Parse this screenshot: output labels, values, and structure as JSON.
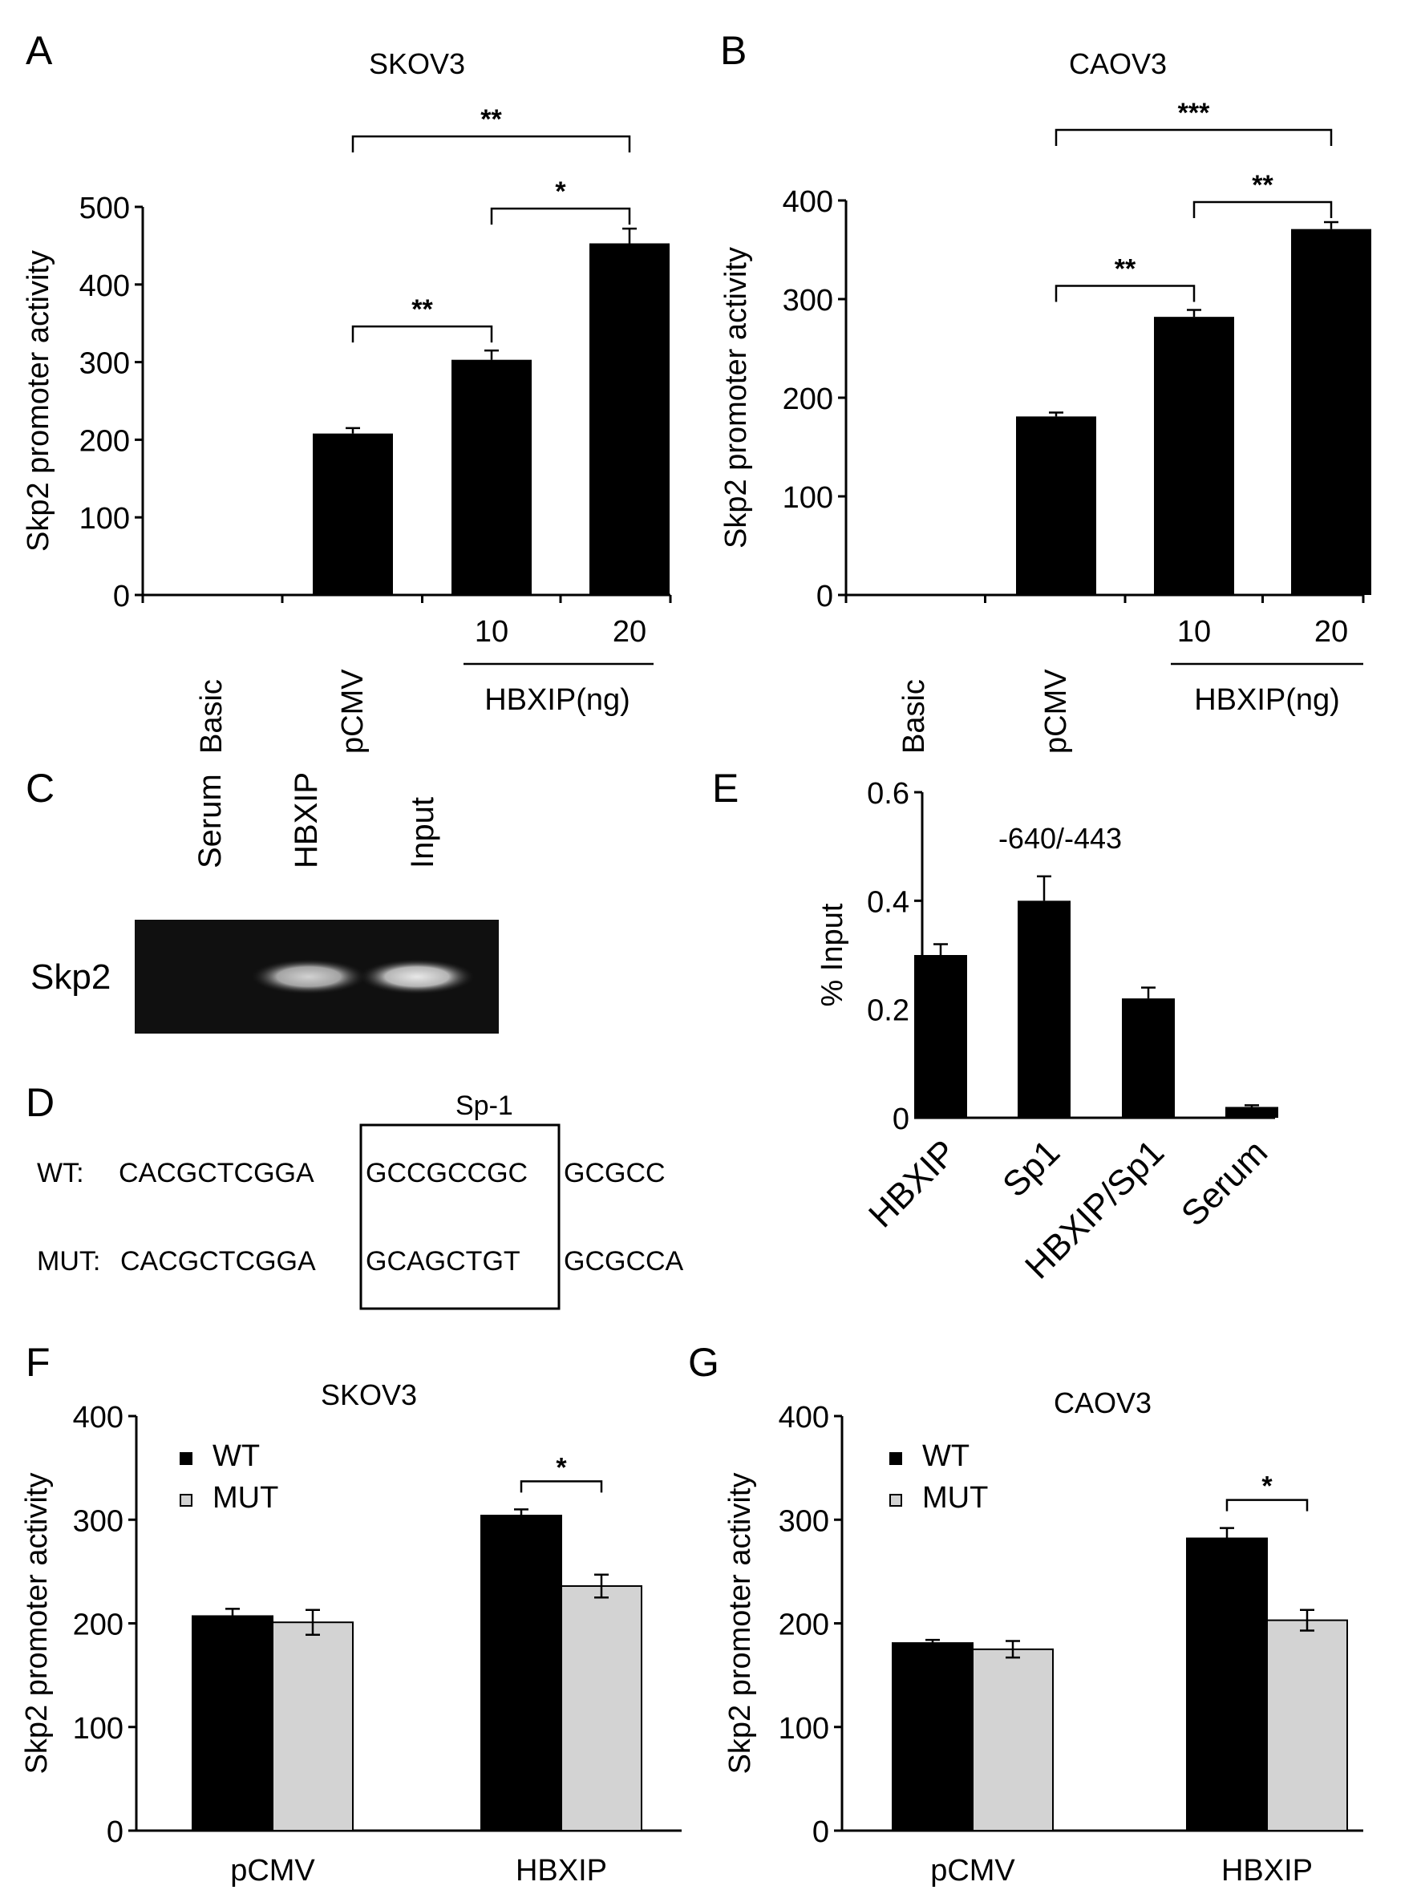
{
  "panels": {
    "A": "A",
    "B": "B",
    "C": "C",
    "D": "D",
    "E": "E",
    "F": "F",
    "G": "G"
  },
  "chart_data": [
    {
      "id": "A",
      "type": "bar",
      "title": "SKOV3",
      "ylabel": "Skp2 promoter activity",
      "ylim": [
        0,
        500
      ],
      "yticks": [
        0,
        100,
        200,
        300,
        400,
        500
      ],
      "categories": [
        "Basic",
        "pCMV",
        "10",
        "20"
      ],
      "values": [
        0,
        208,
        303,
        453
      ],
      "errors": [
        0,
        7,
        12,
        19
      ],
      "group_label": "HBXIP(ng)",
      "grid": false,
      "significance": [
        {
          "from": 1,
          "to": 2,
          "label": "**",
          "level": 1
        },
        {
          "from": 2,
          "to": 3,
          "label": "*",
          "level": 2
        },
        {
          "from": 1,
          "to": 3,
          "label": "**",
          "level": 3
        }
      ]
    },
    {
      "id": "B",
      "type": "bar",
      "title": "CAOV3",
      "ylabel": "Skp2 promoter activity",
      "ylim": [
        0,
        400
      ],
      "yticks": [
        0,
        100,
        200,
        300,
        400
      ],
      "categories": [
        "Basic",
        "pCMV",
        "10",
        "20"
      ],
      "values": [
        0,
        181,
        282,
        371
      ],
      "errors": [
        0,
        4,
        7,
        7
      ],
      "group_label": "HBXIP(ng)",
      "grid": false,
      "significance": [
        {
          "from": 1,
          "to": 2,
          "label": "**",
          "level": 1
        },
        {
          "from": 2,
          "to": 3,
          "label": "**",
          "level": 2
        },
        {
          "from": 1,
          "to": 3,
          "label": "***",
          "level": 3
        }
      ]
    },
    {
      "id": "E",
      "type": "bar",
      "title": "-640/-443",
      "ylabel": "% Input",
      "ylim": [
        0,
        0.6
      ],
      "yticks": [
        "0",
        "0.2",
        "0.4",
        "0.6"
      ],
      "categories": [
        "HBXIP",
        "Sp1",
        "HBXIP/Sp1",
        "Serum"
      ],
      "values": [
        0.3,
        0.4,
        0.22,
        0.02
      ],
      "errors": [
        0.02,
        0.045,
        0.02,
        0.003
      ],
      "grid": false
    },
    {
      "id": "F",
      "type": "bar",
      "title": "SKOV3",
      "ylabel": "Skp2 promoter activity",
      "ylim": [
        0,
        400
      ],
      "yticks": [
        0,
        100,
        200,
        300,
        400
      ],
      "categories": [
        "pCMV",
        "HBXIP"
      ],
      "series": [
        {
          "name": "WT",
          "color": "#000000",
          "values": [
            207,
            304
          ],
          "errors": [
            7,
            6
          ]
        },
        {
          "name": "MUT",
          "color": "#d3d3d3",
          "values": [
            201,
            236
          ],
          "errors": [
            12,
            11
          ]
        }
      ],
      "legend": "top-left",
      "grid": false,
      "significance": [
        {
          "category": 1,
          "label": "*"
        }
      ]
    },
    {
      "id": "G",
      "type": "bar",
      "title": "CAOV3",
      "ylabel": "Skp2 promoter activity",
      "ylim": [
        0,
        400
      ],
      "yticks": [
        0,
        100,
        200,
        300,
        400
      ],
      "categories": [
        "pCMV",
        "HBXIP"
      ],
      "series": [
        {
          "name": "WT",
          "color": "#000000",
          "values": [
            181,
            282
          ],
          "errors": [
            3,
            10
          ]
        },
        {
          "name": "MUT",
          "color": "#d3d3d3",
          "values": [
            175,
            203
          ],
          "errors": [
            8,
            10
          ]
        }
      ],
      "legend": "top-left",
      "grid": false,
      "significance": [
        {
          "category": 1,
          "label": "*"
        }
      ]
    }
  ],
  "gel": {
    "lanes": [
      "Serum",
      "HBXIP",
      "Input"
    ],
    "row_label": "Skp2",
    "band_intensity": [
      0,
      0.85,
      0.95
    ]
  },
  "sequence": {
    "motif_label": "Sp-1",
    "rows": [
      {
        "label": "WT:",
        "left": "CACGCTCGGA",
        "motif": "GCCGCCGC",
        "right": "GCGCC"
      },
      {
        "label": "MUT:",
        "left": "CACGCTCGGA",
        "motif": "GCAGCTGT",
        "right": "GCGCCA"
      }
    ]
  }
}
